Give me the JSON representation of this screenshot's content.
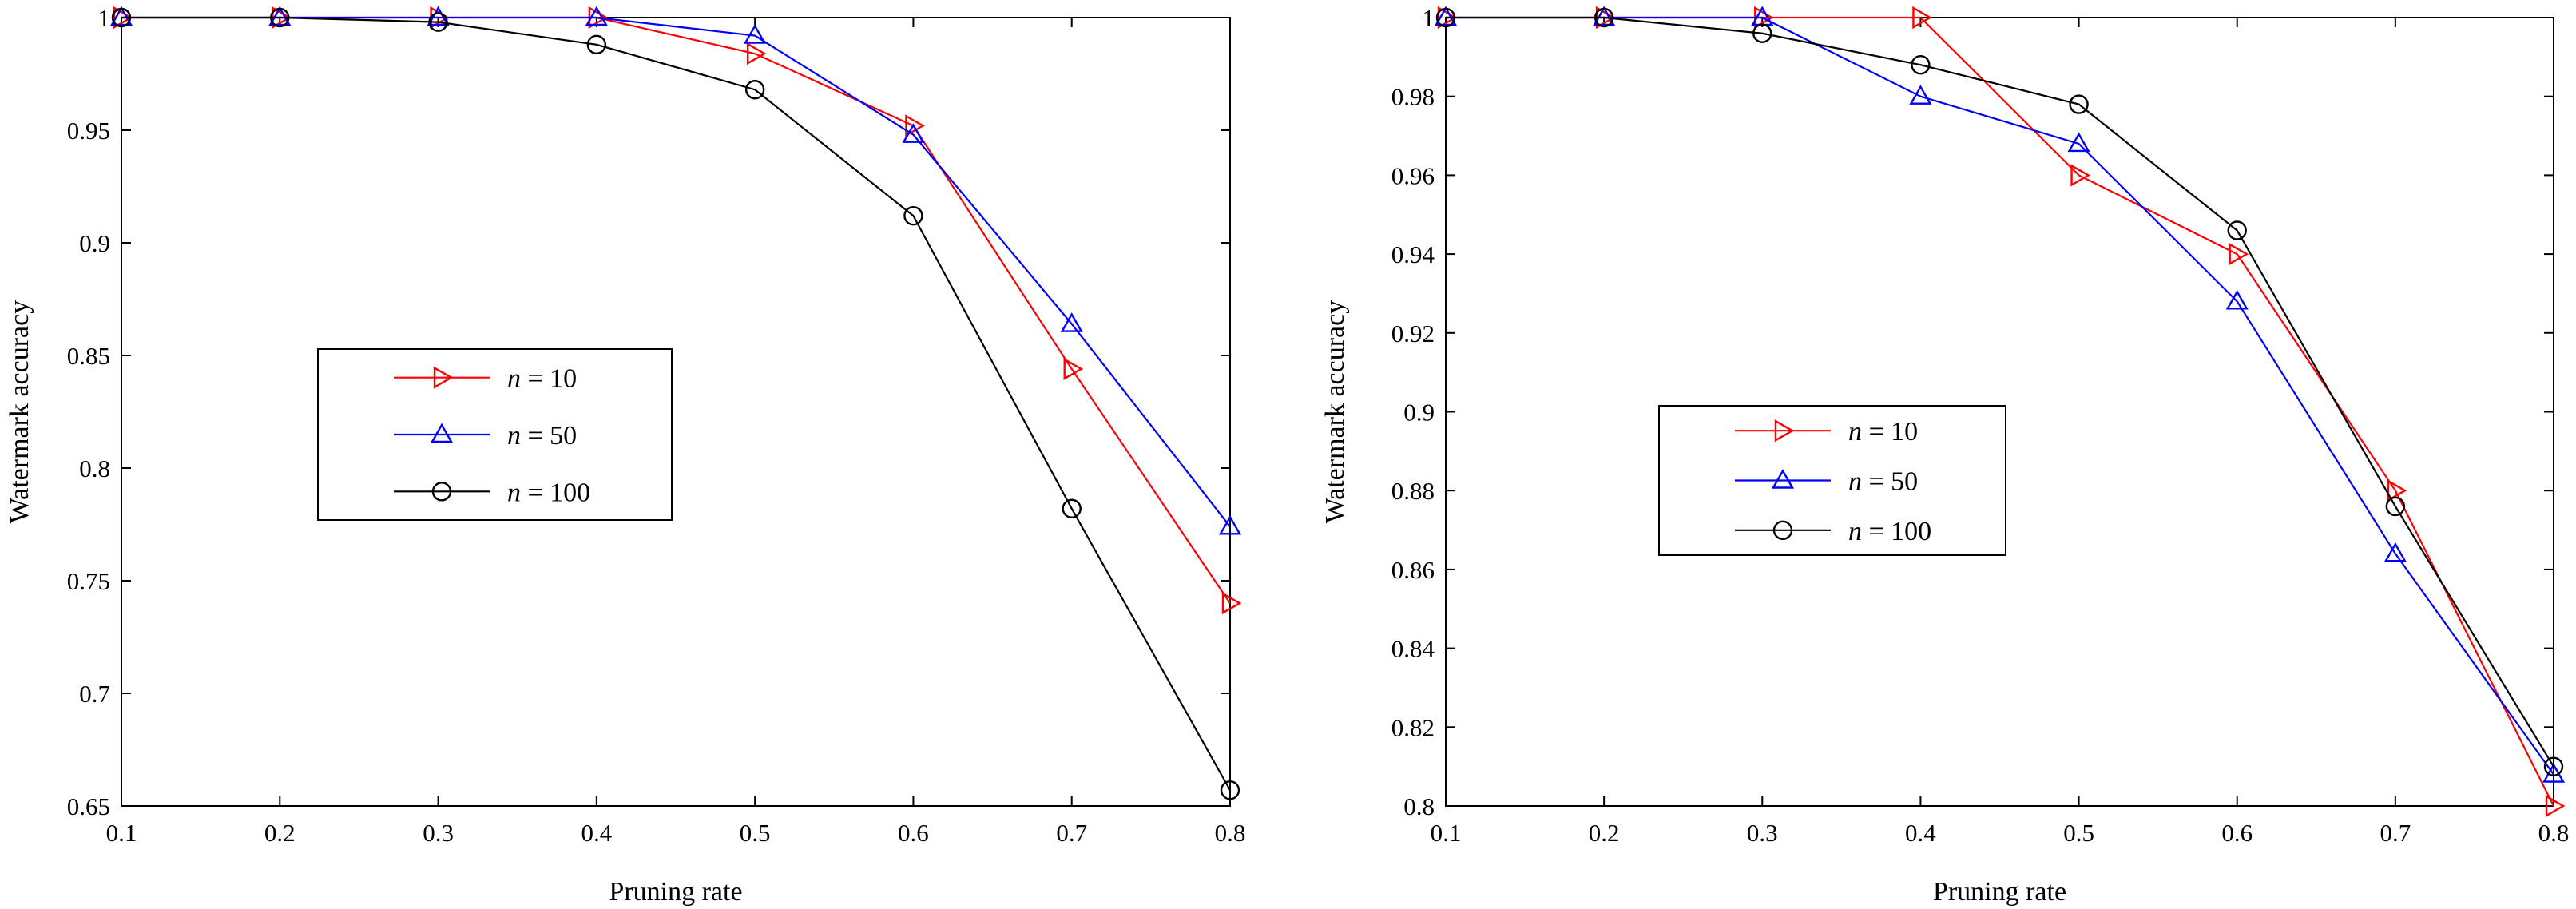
{
  "chart_data": [
    {
      "type": "line",
      "title": "",
      "xlabel": "Pruning rate",
      "ylabel": "Watermark accuracy",
      "xlim": [
        0.1,
        0.8
      ],
      "ylim": [
        0.65,
        1.0
      ],
      "x_ticks": [
        "0.1",
        "0.2",
        "0.3",
        "0.4",
        "0.5",
        "0.6",
        "0.7",
        "0.8"
      ],
      "y_ticks": [
        "0.65",
        "0.7",
        "0.75",
        "0.8",
        "0.85",
        "0.9",
        "0.95",
        "1"
      ],
      "grid": false,
      "legend_position": "center-left",
      "x": [
        0.1,
        0.2,
        0.3,
        0.4,
        0.5,
        0.6,
        0.7,
        0.8
      ],
      "series": [
        {
          "italic": "n",
          "suffix": " = 10",
          "color": "#ff0000",
          "marker": "triangle-right",
          "values": [
            1.0,
            1.0,
            1.0,
            1.0,
            0.984,
            0.952,
            0.844,
            0.74
          ]
        },
        {
          "italic": "n",
          "suffix": " = 50",
          "color": "#0000ff",
          "marker": "triangle-up",
          "values": [
            1.0,
            1.0,
            1.0,
            1.0,
            0.992,
            0.948,
            0.864,
            0.774
          ]
        },
        {
          "italic": "n",
          "suffix": " = 100",
          "color": "#000000",
          "marker": "circle",
          "values": [
            1.0,
            1.0,
            0.998,
            0.988,
            0.968,
            0.912,
            0.782,
            0.657
          ]
        }
      ]
    },
    {
      "type": "line",
      "title": "",
      "xlabel": "Pruning rate",
      "ylabel": "Watermark accuracy",
      "xlim": [
        0.1,
        0.8
      ],
      "ylim": [
        0.8,
        1.0
      ],
      "x_ticks": [
        "0.1",
        "0.2",
        "0.3",
        "0.4",
        "0.5",
        "0.6",
        "0.7",
        "0.8"
      ],
      "y_ticks": [
        "0.8",
        "0.82",
        "0.84",
        "0.86",
        "0.88",
        "0.9",
        "0.92",
        "0.94",
        "0.96",
        "0.98",
        "1"
      ],
      "grid": false,
      "legend_position": "center-left",
      "x": [
        0.1,
        0.2,
        0.3,
        0.4,
        0.5,
        0.6,
        0.7,
        0.8
      ],
      "series": [
        {
          "italic": "n",
          "suffix": " = 10",
          "color": "#ff0000",
          "marker": "triangle-right",
          "values": [
            1.0,
            1.0,
            1.0,
            1.0,
            0.96,
            0.94,
            0.88,
            0.8
          ]
        },
        {
          "italic": "n",
          "suffix": " = 50",
          "color": "#0000ff",
          "marker": "triangle-up",
          "values": [
            1.0,
            1.0,
            1.0,
            0.98,
            0.968,
            0.928,
            0.864,
            0.808
          ]
        },
        {
          "italic": "n",
          "suffix": " = 100",
          "color": "#000000",
          "marker": "circle",
          "values": [
            1.0,
            1.0,
            0.996,
            0.988,
            0.978,
            0.946,
            0.876,
            0.81
          ]
        }
      ]
    }
  ]
}
